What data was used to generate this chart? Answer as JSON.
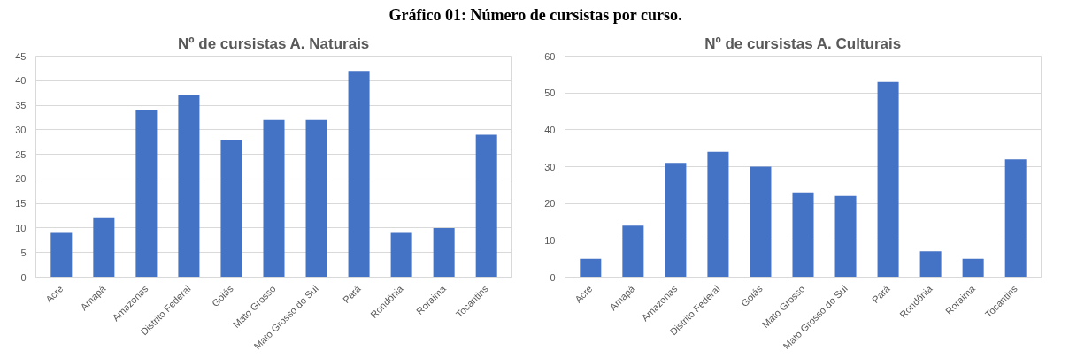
{
  "chart_data": [
    {
      "type": "bar",
      "title": "Nº de cursistas A. Naturais",
      "annotations": [
        "Gráfico 01: Número de cursistas por curso."
      ],
      "categories": [
        "Acre",
        "Amapá",
        "Amazonas",
        "Distrito Federal",
        "Goiás",
        "Mato Grosso",
        "Mato Grosso do Sul",
        "Pará",
        "Rondônia",
        "Roraima",
        "Tocantins"
      ],
      "values": [
        9,
        12,
        34,
        37,
        28,
        32,
        32,
        42,
        9,
        10,
        29
      ],
      "color": "#4472c4",
      "ylim": [
        0,
        45
      ],
      "yticks": [
        0,
        5,
        10,
        15,
        20,
        25,
        30,
        35,
        40,
        45
      ],
      "grid": "y"
    },
    {
      "type": "bar",
      "title": "Nº de cursistas A. Culturais",
      "categories": [
        "Acre",
        "Amapá",
        "Amazonas",
        "Distrito Federal",
        "Goiás",
        "Mato Grosso",
        "Mato Grosso do Sul",
        "Pará",
        "Rondônia",
        "Roraima",
        "Tocantins"
      ],
      "values": [
        5,
        14,
        31,
        34,
        30,
        23,
        22,
        53,
        7,
        5,
        32
      ],
      "color": "#4472c4",
      "ylim": [
        0,
        60
      ],
      "yticks": [
        0,
        10,
        20,
        30,
        40,
        50,
        60
      ],
      "grid": "y"
    }
  ]
}
